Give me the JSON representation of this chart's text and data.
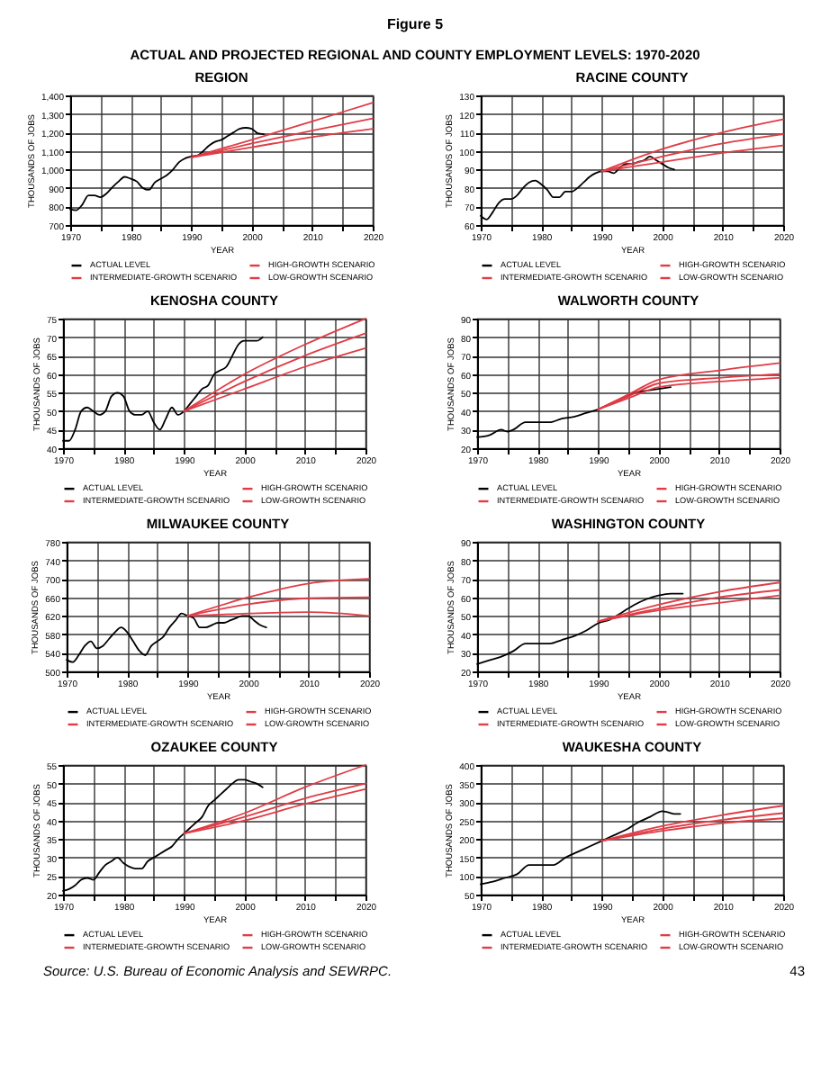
{
  "chart_data": [
    {
      "type": "other",
      "title": "Figure 5",
      "subtitle": "ACTUAL AND PROJECTED REGIONAL AND COUNTY EMPLOYMENT LEVELS: 1970-2020"
    },
    {
      "type": "line",
      "title": "REGION",
      "xlabel": "YEAR",
      "ylabel": "THOUSANDS OF JOBS",
      "grid": true,
      "legend": "bottom",
      "xlim": [
        1970,
        2020
      ],
      "xticks": [
        1970,
        {
          "value": 1975,
          "label": null
        },
        1980,
        {
          "value": 1985,
          "label": null
        },
        1990,
        {
          "value": 1995,
          "label": null
        },
        2000,
        {
          "value": 2005,
          "label": null
        },
        2010,
        {
          "value": 2015,
          "label": null
        },
        2020
      ],
      "ylim": [
        700,
        1400
      ],
      "yticks": [
        700,
        800,
        900,
        {
          "value": 1000,
          "label": "1,000"
        },
        {
          "value": 1100,
          "label": "1,100"
        },
        {
          "value": 1200,
          "label": "1,200"
        },
        {
          "value": 1300,
          "label": "1,300"
        },
        {
          "value": 1400,
          "label": "1,400"
        }
      ],
      "series": [
        {
          "name": "ACTUAL LEVEL",
          "color": "#000000",
          "x": [
            1970,
            1971,
            1972,
            1973,
            1974,
            1975,
            1976,
            1977,
            1978,
            1979,
            1980,
            1981,
            1982,
            1983,
            1984,
            1985,
            1986,
            1987,
            1988,
            1989,
            1990,
            1991,
            1992,
            1993,
            1994,
            1995,
            1996,
            1997,
            1998,
            1999,
            2000,
            2001,
            2002
          ],
          "values": [
            785,
            780,
            810,
            860,
            860,
            850,
            870,
            905,
            935,
            960,
            950,
            935,
            900,
            890,
            930,
            950,
            970,
            1000,
            1040,
            1060,
            1070,
            1075,
            1100,
            1130,
            1150,
            1160,
            1180,
            1200,
            1220,
            1225,
            1220,
            1195,
            1190
          ]
        },
        {
          "name": "HIGH-GROWTH SCENARIO",
          "color": "#e03c46",
          "x": [
            1990,
            2000,
            2010,
            2020
          ],
          "values": [
            1065,
            1160,
            1260,
            1360
          ]
        },
        {
          "name": "INTERMEDIATE-GROWTH SCENARIO",
          "color": "#e03c46",
          "x": [
            1990,
            2000,
            2010,
            2020
          ],
          "values": [
            1065,
            1140,
            1210,
            1275
          ]
        },
        {
          "name": "LOW-GROWTH SCENARIO",
          "color": "#e03c46",
          "x": [
            1990,
            2000,
            2010,
            2020
          ],
          "values": [
            1065,
            1120,
            1175,
            1220
          ]
        }
      ]
    },
    {
      "type": "line",
      "title": "RACINE COUNTY",
      "xlabel": "YEAR",
      "ylabel": "THOUSANDS OF JOBS",
      "grid": true,
      "legend": "bottom",
      "xlim": [
        1970,
        2020
      ],
      "xticks": [
        1970,
        {
          "value": 1975,
          "label": null
        },
        1980,
        {
          "value": 1985,
          "label": null
        },
        1990,
        {
          "value": 1995,
          "label": null
        },
        2000,
        {
          "value": 2005,
          "label": null
        },
        2010,
        {
          "value": 2015,
          "label": null
        },
        2020
      ],
      "ylim": [
        60,
        130
      ],
      "yticks": [
        60,
        70,
        80,
        90,
        100,
        110,
        120,
        130
      ],
      "series": [
        {
          "name": "ACTUAL LEVEL",
          "color": "#000000",
          "x": [
            1970,
            1971,
            1972,
            1973,
            1974,
            1975,
            1976,
            1977,
            1978,
            1979,
            1980,
            1981,
            1982,
            1983,
            1984,
            1985,
            1986,
            1987,
            1988,
            1989,
            1990,
            1991,
            1992,
            1993,
            1994,
            1995,
            1996,
            1997,
            1998,
            1999,
            2000,
            2001,
            2002
          ],
          "values": [
            65,
            63,
            67,
            72,
            74,
            74,
            76,
            80,
            83,
            84,
            82,
            79,
            75,
            75,
            78,
            78,
            80,
            83,
            86,
            88,
            89,
            89,
            88,
            91,
            93,
            93,
            94,
            95,
            97,
            95,
            93,
            91,
            90
          ]
        },
        {
          "name": "HIGH-GROWTH SCENARIO",
          "color": "#e03c46",
          "x": [
            1990,
            2000,
            2010,
            2020
          ],
          "values": [
            89,
            101,
            110,
            117
          ]
        },
        {
          "name": "INTERMEDIATE-GROWTH SCENARIO",
          "color": "#e03c46",
          "x": [
            1990,
            2000,
            2010,
            2020
          ],
          "values": [
            89,
            97,
            104,
            109
          ]
        },
        {
          "name": "LOW-GROWTH SCENARIO",
          "color": "#e03c46",
          "x": [
            1990,
            2000,
            2010,
            2020
          ],
          "values": [
            89,
            94,
            99,
            103
          ]
        }
      ]
    },
    {
      "type": "line",
      "title": "KENOSHA COUNTY",
      "xlabel": "YEAR",
      "ylabel": "THOUSANDS OF JOBS",
      "grid": true,
      "legend": "bottom",
      "xlim": [
        1970,
        2020
      ],
      "xticks": [
        1970,
        {
          "value": 1975,
          "label": null
        },
        1980,
        {
          "value": 1985,
          "label": null
        },
        1990,
        {
          "value": 1995,
          "label": null
        },
        2000,
        {
          "value": 2005,
          "label": null
        },
        2010,
        {
          "value": 2015,
          "label": null
        },
        2020
      ],
      "ylim": [
        40,
        75
      ],
      "yticks": [
        40,
        45,
        50,
        55,
        60,
        65,
        70,
        75
      ],
      "series": [
        {
          "name": "ACTUAL LEVEL",
          "color": "#000000",
          "x": [
            1970,
            1971,
            1972,
            1973,
            1974,
            1975,
            1976,
            1977,
            1978,
            1979,
            1980,
            1981,
            1982,
            1983,
            1984,
            1985,
            1986,
            1987,
            1988,
            1989,
            1990,
            1991,
            1992,
            1993,
            1994,
            1995,
            1996,
            1997,
            1998,
            1999,
            2000,
            2001,
            2002,
            2003
          ],
          "values": [
            42,
            42,
            45,
            50,
            51,
            50,
            49,
            50,
            54,
            55,
            54,
            50,
            49,
            49,
            50,
            47,
            45,
            48,
            51,
            49,
            50,
            52,
            54,
            56,
            57,
            60,
            61,
            62,
            65,
            68,
            69,
            69,
            69,
            70
          ]
        },
        {
          "name": "HIGH-GROWTH SCENARIO",
          "color": "#e03c46",
          "x": [
            1990,
            2000,
            2010,
            2020
          ],
          "values": [
            50,
            60,
            68,
            75
          ]
        },
        {
          "name": "INTERMEDIATE-GROWTH SCENARIO",
          "color": "#e03c46",
          "x": [
            1990,
            2000,
            2010,
            2020
          ],
          "values": [
            50,
            58,
            65,
            71
          ]
        },
        {
          "name": "LOW-GROWTH SCENARIO",
          "color": "#e03c46",
          "x": [
            1990,
            2000,
            2010,
            2020
          ],
          "values": [
            50,
            56,
            62,
            67
          ]
        }
      ]
    },
    {
      "type": "line",
      "title": "WALWORTH COUNTY",
      "xlabel": "YEAR",
      "ylabel": "THOUSANDS OF JOBS",
      "grid": true,
      "legend": "bottom",
      "xlim": [
        1970,
        2020
      ],
      "xticks": [
        1970,
        {
          "value": 1975,
          "label": null
        },
        1980,
        {
          "value": 1985,
          "label": null
        },
        1990,
        {
          "value": 1995,
          "label": null
        },
        2000,
        {
          "value": 2005,
          "label": null
        },
        2010,
        {
          "value": 2015,
          "label": null
        },
        2020
      ],
      "ylim": [
        20,
        90
      ],
      "yticks": [
        20,
        30,
        40,
        50,
        60,
        70,
        80,
        90
      ],
      "series": [
        {
          "name": "ACTUAL LEVEL",
          "color": "#000000",
          "x": [
            1970,
            1972,
            1974,
            1975,
            1976,
            1978,
            1980,
            1982,
            1984,
            1986,
            1988,
            1990,
            1992,
            1994,
            1996,
            1998,
            2000,
            2002
          ],
          "values": [
            26,
            27,
            30,
            29,
            30,
            34,
            34,
            34,
            36,
            37,
            39,
            41,
            44,
            47,
            50,
            51,
            52,
            53
          ]
        },
        {
          "name": "HIGH-GROWTH SCENARIO",
          "color": "#e03c46",
          "x": [
            1990,
            1995,
            2000,
            2010,
            2020
          ],
          "values": [
            41,
            49,
            57,
            62,
            66
          ]
        },
        {
          "name": "INTERMEDIATE-GROWTH SCENARIO",
          "color": "#e03c46",
          "x": [
            1990,
            1995,
            2000,
            2010,
            2020
          ],
          "values": [
            41,
            48,
            55,
            58,
            60
          ]
        },
        {
          "name": "LOW-GROWTH SCENARIO",
          "color": "#e03c46",
          "x": [
            1990,
            1995,
            2000,
            2010,
            2020
          ],
          "values": [
            41,
            47,
            53,
            56,
            58
          ]
        }
      ]
    },
    {
      "type": "line",
      "title": "MILWAUKEE COUNTY",
      "xlabel": "YEAR",
      "ylabel": "THOUSANDS OF JOBS",
      "grid": true,
      "legend": "bottom",
      "xlim": [
        1970,
        2020
      ],
      "xticks": [
        1970,
        {
          "value": 1975,
          "label": null
        },
        1980,
        {
          "value": 1985,
          "label": null
        },
        1990,
        {
          "value": 1995,
          "label": null
        },
        2000,
        {
          "value": 2005,
          "label": null
        },
        2010,
        {
          "value": 2015,
          "label": null
        },
        2020
      ],
      "ylim": [
        500,
        780
      ],
      "yticks": [
        500,
        540,
        580,
        620,
        660,
        700,
        740,
        780
      ],
      "series": [
        {
          "name": "ACTUAL LEVEL",
          "color": "#000000",
          "x": [
            1970,
            1971,
            1972,
            1973,
            1974,
            1975,
            1976,
            1977,
            1978,
            1979,
            1980,
            1981,
            1982,
            1983,
            1984,
            1985,
            1986,
            1987,
            1988,
            1989,
            1990,
            1991,
            1992,
            1993,
            1994,
            1995,
            1996,
            1997,
            1998,
            1999,
            2000,
            2001,
            2002,
            2003
          ],
          "values": [
            525,
            520,
            535,
            555,
            565,
            550,
            555,
            570,
            585,
            595,
            585,
            565,
            545,
            535,
            555,
            565,
            575,
            595,
            610,
            625,
            620,
            615,
            595,
            595,
            600,
            605,
            605,
            610,
            615,
            620,
            620,
            610,
            600,
            595
          ]
        },
        {
          "name": "HIGH-GROWTH SCENARIO",
          "color": "#e03c46",
          "x": [
            1990,
            2000,
            2010,
            2020
          ],
          "values": [
            620,
            660,
            690,
            700
          ]
        },
        {
          "name": "INTERMEDIATE-GROWTH SCENARIO",
          "color": "#e03c46",
          "x": [
            1990,
            2000,
            2010,
            2020
          ],
          "values": [
            620,
            645,
            658,
            660
          ]
        },
        {
          "name": "LOW-GROWTH SCENARIO",
          "color": "#e03c46",
          "x": [
            1990,
            2000,
            2010,
            2020
          ],
          "values": [
            620,
            625,
            628,
            620
          ]
        }
      ]
    },
    {
      "type": "line",
      "title": "WASHINGTON COUNTY",
      "xlabel": "YEAR",
      "ylabel": "THOUSANDS OF JOBS",
      "grid": true,
      "legend": "bottom",
      "xlim": [
        1970,
        2020
      ],
      "xticks": [
        1970,
        {
          "value": 1975,
          "label": null
        },
        1980,
        {
          "value": 1985,
          "label": null
        },
        1990,
        {
          "value": 1995,
          "label": null
        },
        2000,
        {
          "value": 2005,
          "label": null
        },
        2010,
        {
          "value": 2015,
          "label": null
        },
        2020
      ],
      "ylim": [
        20,
        90
      ],
      "yticks": [
        20,
        30,
        40,
        50,
        60,
        70,
        80,
        90
      ],
      "series": [
        {
          "name": "ACTUAL LEVEL",
          "color": "#000000",
          "x": [
            1970,
            1972,
            1974,
            1976,
            1978,
            1980,
            1982,
            1984,
            1986,
            1988,
            1990,
            1992,
            1994,
            1996,
            1998,
            2000,
            2002,
            2004
          ],
          "values": [
            24,
            26,
            28,
            31,
            35,
            35,
            35,
            37,
            39,
            42,
            46,
            48,
            52,
            56,
            59,
            61,
            62,
            62
          ]
        },
        {
          "name": "HIGH-GROWTH SCENARIO",
          "color": "#e03c46",
          "x": [
            1990,
            2000,
            2010,
            2020
          ],
          "values": [
            47,
            56,
            63,
            68
          ]
        },
        {
          "name": "INTERMEDIATE-GROWTH SCENARIO",
          "color": "#e03c46",
          "x": [
            1990,
            2000,
            2010,
            2020
          ],
          "values": [
            47,
            54,
            60,
            64
          ]
        },
        {
          "name": "LOW-GROWTH SCENARIO",
          "color": "#e03c46",
          "x": [
            1990,
            2000,
            2010,
            2020
          ],
          "values": [
            47,
            53,
            57,
            61
          ]
        }
      ]
    },
    {
      "type": "line",
      "title": "OZAUKEE COUNTY",
      "xlabel": "YEAR",
      "ylabel": "THOUSANDS OF JOBS",
      "grid": true,
      "legend": "bottom",
      "xlim": [
        1970,
        2020
      ],
      "xticks": [
        1970,
        {
          "value": 1975,
          "label": null
        },
        1980,
        {
          "value": 1985,
          "label": null
        },
        1990,
        {
          "value": 1995,
          "label": null
        },
        2000,
        {
          "value": 2005,
          "label": null
        },
        2010,
        {
          "value": 2015,
          "label": null
        },
        2020
      ],
      "ylim": [
        20,
        55
      ],
      "yticks": [
        20,
        25,
        30,
        35,
        40,
        45,
        50,
        55
      ],
      "series": [
        {
          "name": "ACTUAL LEVEL",
          "color": "#000000",
          "x": [
            1970,
            1971,
            1972,
            1973,
            1974,
            1975,
            1976,
            1977,
            1978,
            1979,
            1980,
            1981,
            1982,
            1983,
            1984,
            1985,
            1986,
            1987,
            1988,
            1989,
            1990,
            1991,
            1992,
            1993,
            1994,
            1995,
            1996,
            1997,
            1998,
            1999,
            2000,
            2001,
            2002,
            2003
          ],
          "values": [
            21,
            21.5,
            22.5,
            24,
            24.5,
            24,
            26,
            28,
            29,
            30,
            28.5,
            27.5,
            27,
            27,
            29,
            30,
            31,
            32,
            33,
            35,
            36.5,
            38,
            39.5,
            41,
            44,
            45.5,
            47,
            48.5,
            50,
            51,
            51,
            50.5,
            50,
            49
          ]
        },
        {
          "name": "HIGH-GROWTH SCENARIO",
          "color": "#e03c46",
          "x": [
            1990,
            2000,
            2010,
            2020
          ],
          "values": [
            36.5,
            42,
            49,
            55
          ]
        },
        {
          "name": "INTERMEDIATE-GROWTH SCENARIO",
          "color": "#e03c46",
          "x": [
            1990,
            2000,
            2010,
            2020
          ],
          "values": [
            36.5,
            41,
            46,
            50
          ]
        },
        {
          "name": "LOW-GROWTH SCENARIO",
          "color": "#e03c46",
          "x": [
            1990,
            2000,
            2010,
            2020
          ],
          "values": [
            36.5,
            40,
            44.5,
            48.5
          ]
        }
      ]
    },
    {
      "type": "line",
      "title": "WAUKESHA COUNTY",
      "xlabel": "YEAR",
      "ylabel": "THOUSANDS OF JOBS",
      "grid": true,
      "legend": "bottom",
      "xlim": [
        1970,
        2020
      ],
      "xticks": [
        1970,
        {
          "value": 1975,
          "label": null
        },
        1980,
        {
          "value": 1985,
          "label": null
        },
        1990,
        {
          "value": 1995,
          "label": null
        },
        2000,
        {
          "value": 2005,
          "label": null
        },
        2010,
        {
          "value": 2015,
          "label": null
        },
        2020
      ],
      "ylim": [
        50,
        400
      ],
      "yticks": [
        50,
        100,
        150,
        200,
        250,
        300,
        350,
        400
      ],
      "series": [
        {
          "name": "ACTUAL LEVEL",
          "color": "#000000",
          "x": [
            1970,
            1972,
            1974,
            1976,
            1978,
            1980,
            1982,
            1984,
            1986,
            1988,
            1990,
            1992,
            1994,
            1996,
            1998,
            2000,
            2001,
            2002,
            2003
          ],
          "values": [
            78,
            85,
            95,
            105,
            130,
            130,
            130,
            150,
            165,
            180,
            195,
            210,
            225,
            245,
            260,
            275,
            272,
            268,
            268
          ]
        },
        {
          "name": "HIGH-GROWTH SCENARIO",
          "color": "#e03c46",
          "x": [
            1990,
            2000,
            2010,
            2020
          ],
          "values": [
            195,
            235,
            265,
            290
          ]
        },
        {
          "name": "INTERMEDIATE-GROWTH SCENARIO",
          "color": "#e03c46",
          "x": [
            1990,
            2000,
            2010,
            2020
          ],
          "values": [
            195,
            228,
            252,
            270
          ]
        },
        {
          "name": "LOW-GROWTH SCENARIO",
          "color": "#e03c46",
          "x": [
            1990,
            2000,
            2010,
            2020
          ],
          "values": [
            195,
            222,
            243,
            256
          ]
        }
      ]
    },
    {
      "type": "other",
      "annotations": [
        "Source: U.S. Bureau of Economic Analysis and SEWRPC.",
        "43"
      ]
    }
  ]
}
